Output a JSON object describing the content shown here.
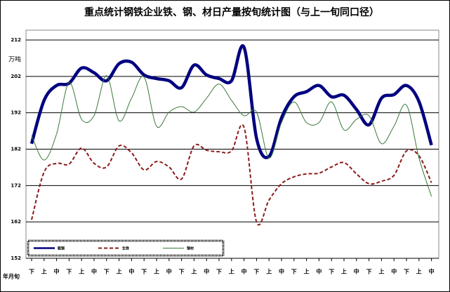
{
  "chart_data": {
    "type": "line",
    "title": "重点统计钢铁企业铁、钢、材日产量按旬统计图（与上一旬同口径）",
    "y_label": "万吨",
    "x_label": "年月旬",
    "categories": [
      "下",
      "上",
      "中",
      "下",
      "上",
      "中",
      "下",
      "上",
      "中",
      "下",
      "上",
      "中",
      "下",
      "上",
      "中",
      "下",
      "上",
      "中",
      "下",
      "上",
      "中",
      "下",
      "上",
      "中",
      "下",
      "上",
      "中",
      "下",
      "上",
      "中",
      "下",
      "上",
      "中"
    ],
    "series": [
      {
        "name": "粗钢",
        "color": "#000080",
        "values": [
          183.5,
          195.4,
          199.5,
          200.1,
          204.3,
          203.0,
          200.8,
          205.5,
          205.9,
          202.4,
          201.4,
          200.8,
          198.9,
          205.1,
          202.4,
          201.4,
          200.8,
          210.0,
          185.0,
          180.0,
          190.6,
          196.4,
          197.8,
          199.5,
          196.4,
          196.8,
          192.9,
          188.7,
          196.0,
          197.0,
          199.5,
          195.1,
          183.1
        ]
      },
      {
        "name": "生铁",
        "color": "#8b1a1a",
        "values": [
          162.6,
          175.7,
          178.1,
          177.9,
          182.3,
          178.1,
          177.1,
          182.9,
          181.0,
          176.3,
          178.6,
          177.1,
          173.8,
          182.9,
          181.7,
          181.3,
          181.5,
          188.0,
          162.0,
          168.0,
          172.5,
          174.4,
          175.2,
          175.4,
          177.1,
          178.3,
          175.2,
          172.5,
          173.2,
          174.8,
          181.5,
          180.2,
          172.8
        ]
      },
      {
        "name": "钢材",
        "color": "#3a7a3a",
        "values": [
          185.8,
          179.0,
          186.2,
          200.3,
          190.2,
          191.2,
          202.2,
          189.8,
          196.0,
          201.8,
          188.3,
          192.2,
          193.7,
          192.2,
          196.0,
          199.9,
          195.4,
          191.2,
          192.2,
          179.6,
          189.3,
          195.0,
          189.3,
          189.3,
          195.0,
          187.3,
          190.2,
          191.2,
          183.5,
          188.3,
          194.1,
          179.6,
          169.0
        ]
      }
    ],
    "ylim": [
      152,
      214.7
    ],
    "yticks": [
      152,
      162,
      172,
      182,
      192,
      202,
      212
    ],
    "grid": true
  }
}
